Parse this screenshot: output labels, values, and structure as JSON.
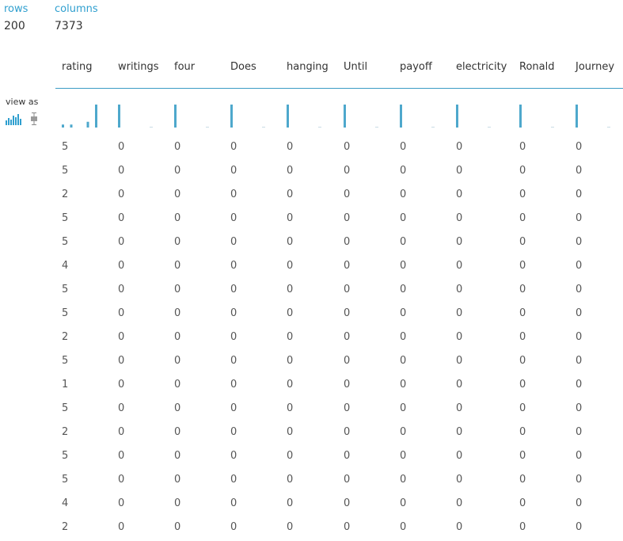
{
  "stats": {
    "rows_label": "rows",
    "rows_value": "200",
    "columns_label": "columns",
    "columns_value": "7373"
  },
  "view_as": {
    "label": "view as",
    "options": [
      "histogram-icon",
      "boxplot-icon"
    ],
    "selected": "histogram-icon"
  },
  "colors": {
    "accent": "#2f9fcf",
    "bar": "#4ea8cc",
    "divider": "#3c9cc4"
  },
  "columns": [
    "rating",
    "writings",
    "four",
    "Does",
    "hanging",
    "Until",
    "payoff",
    "electricity",
    "Ronald",
    "Journey"
  ],
  "histograms": [
    [
      0.13,
      0.13,
      0,
      0.25,
      1.0
    ],
    [
      1.0,
      0.03
    ],
    [
      1.0,
      0.03
    ],
    [
      1.0,
      0.03
    ],
    [
      1.0,
      0.03
    ],
    [
      1.0,
      0.03
    ],
    [
      1.0,
      0.03
    ],
    [
      1.0,
      0.03
    ],
    [
      1.0,
      0.03
    ],
    [
      1.0,
      0.03
    ]
  ],
  "rows": [
    [
      "5",
      "0",
      "0",
      "0",
      "0",
      "0",
      "0",
      "0",
      "0",
      "0"
    ],
    [
      "5",
      "0",
      "0",
      "0",
      "0",
      "0",
      "0",
      "0",
      "0",
      "0"
    ],
    [
      "2",
      "0",
      "0",
      "0",
      "0",
      "0",
      "0",
      "0",
      "0",
      "0"
    ],
    [
      "5",
      "0",
      "0",
      "0",
      "0",
      "0",
      "0",
      "0",
      "0",
      "0"
    ],
    [
      "5",
      "0",
      "0",
      "0",
      "0",
      "0",
      "0",
      "0",
      "0",
      "0"
    ],
    [
      "4",
      "0",
      "0",
      "0",
      "0",
      "0",
      "0",
      "0",
      "0",
      "0"
    ],
    [
      "5",
      "0",
      "0",
      "0",
      "0",
      "0",
      "0",
      "0",
      "0",
      "0"
    ],
    [
      "5",
      "0",
      "0",
      "0",
      "0",
      "0",
      "0",
      "0",
      "0",
      "0"
    ],
    [
      "2",
      "0",
      "0",
      "0",
      "0",
      "0",
      "0",
      "0",
      "0",
      "0"
    ],
    [
      "5",
      "0",
      "0",
      "0",
      "0",
      "0",
      "0",
      "0",
      "0",
      "0"
    ],
    [
      "1",
      "0",
      "0",
      "0",
      "0",
      "0",
      "0",
      "0",
      "0",
      "0"
    ],
    [
      "5",
      "0",
      "0",
      "0",
      "0",
      "0",
      "0",
      "0",
      "0",
      "0"
    ],
    [
      "2",
      "0",
      "0",
      "0",
      "0",
      "0",
      "0",
      "0",
      "0",
      "0"
    ],
    [
      "5",
      "0",
      "0",
      "0",
      "0",
      "0",
      "0",
      "0",
      "0",
      "0"
    ],
    [
      "5",
      "0",
      "0",
      "0",
      "0",
      "0",
      "0",
      "0",
      "0",
      "0"
    ],
    [
      "4",
      "0",
      "0",
      "0",
      "0",
      "0",
      "0",
      "0",
      "0",
      "0"
    ],
    [
      "2",
      "0",
      "0",
      "0",
      "0",
      "0",
      "0",
      "0",
      "0",
      "0"
    ]
  ]
}
